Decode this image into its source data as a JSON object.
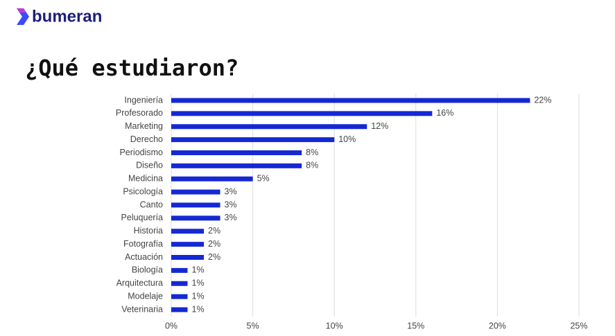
{
  "brand": "bumeran",
  "chart_data": {
    "type": "bar",
    "orientation": "horizontal",
    "title": "¿Qué estudiaron?",
    "categories": [
      "Ingeniería",
      "Profesorado",
      "Marketing",
      "Derecho",
      "Periodismo",
      "Diseño",
      "Medicina",
      "Psicología",
      "Canto",
      "Peluquería",
      "Historia",
      "Fotografía",
      "Actuación",
      "Biología",
      "Arquitectura",
      "Modelaje",
      "Veterinaria"
    ],
    "values": [
      22,
      16,
      12,
      10,
      8,
      8,
      5,
      3,
      3,
      3,
      2,
      2,
      2,
      1,
      1,
      1,
      1
    ],
    "value_labels": [
      "22%",
      "16%",
      "12%",
      "10%",
      "8%",
      "8%",
      "5%",
      "3%",
      "3%",
      "3%",
      "2%",
      "2%",
      "2%",
      "1%",
      "1%",
      "1%",
      "1%"
    ],
    "color": "#1428d4",
    "xlim": [
      0,
      25
    ],
    "xticks": [
      {
        "value": 0,
        "label": "0%"
      },
      {
        "value": 5,
        "label": "5%"
      },
      {
        "value": 10,
        "label": "10%"
      },
      {
        "value": 15,
        "label": "15%"
      },
      {
        "value": 20,
        "label": "20%"
      },
      {
        "value": 25,
        "label": "25%"
      }
    ],
    "grid": true
  }
}
